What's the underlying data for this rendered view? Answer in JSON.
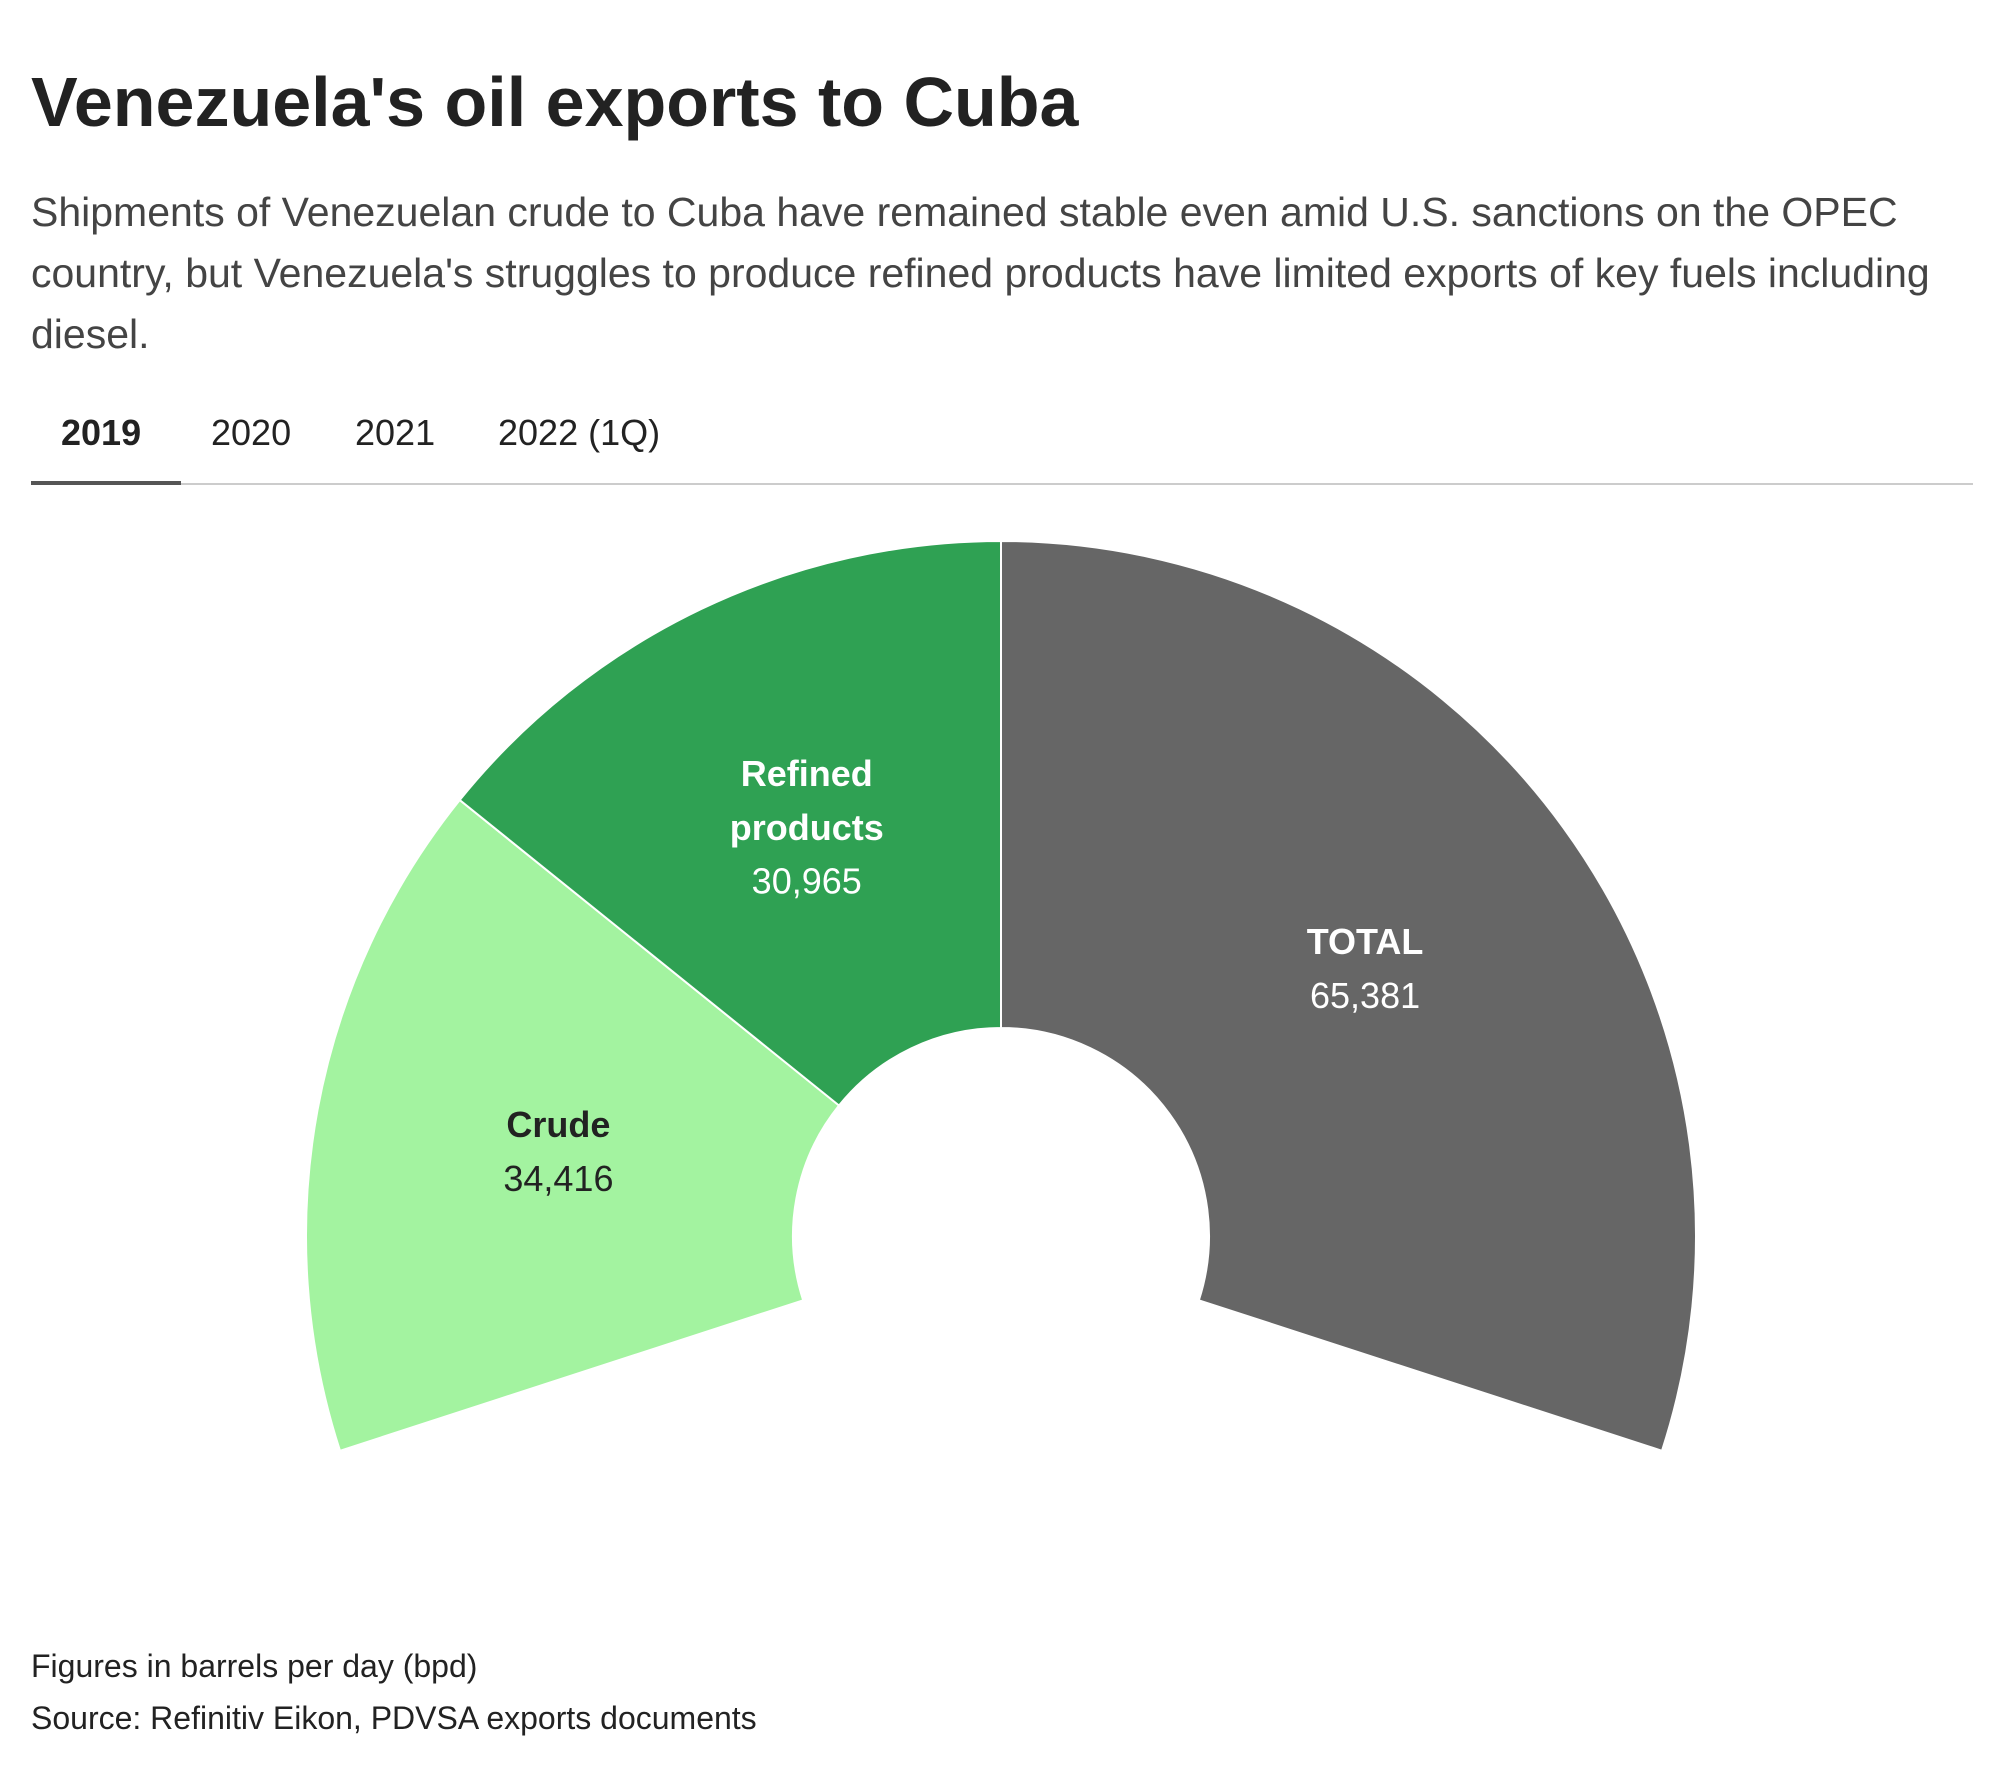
{
  "header": {
    "title": "Venezuela's oil exports to Cuba",
    "subtitle": "Shipments of Venezuelan crude to Cuba have remained stable even amid U.S. sanctions on the OPEC country, but Venezuela's struggles to produce refined products have limited exports of key fuels including diesel."
  },
  "tabs": [
    "2019",
    "2020",
    "2021",
    "2022 (1Q)"
  ],
  "chart_data": {
    "type": "pie",
    "categories": [
      "Crude",
      "Refined products",
      "TOTAL"
    ],
    "values": [
      34416,
      30965,
      65381
    ],
    "value_labels": [
      "34,416",
      "30,965",
      "65,381"
    ],
    "colors": [
      "#a3f3a0",
      "#2fa153",
      "#666666"
    ],
    "label_colors": [
      "#222222",
      "#ffffff",
      "#ffffff"
    ]
  },
  "footer": {
    "note": "Figures in barrels per day (bpd)",
    "source": "Source: Refinitiv Eikon, PDVSA exports documents"
  }
}
